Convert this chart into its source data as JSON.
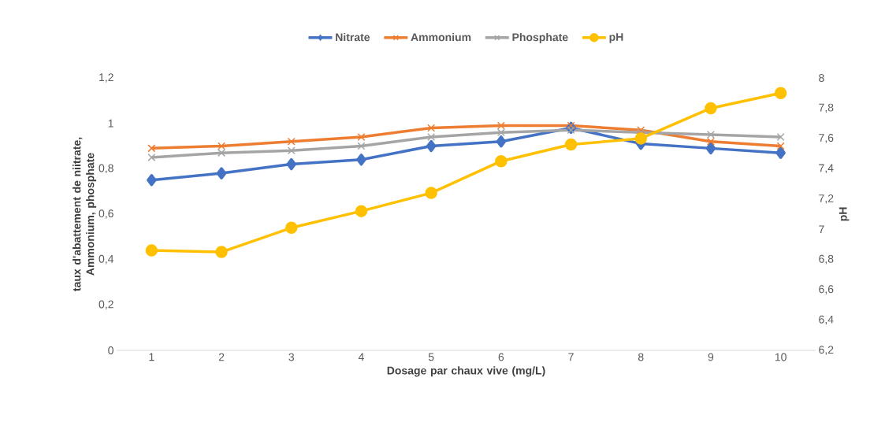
{
  "chart_data": {
    "type": "line",
    "categories": [
      "1",
      "2",
      "3",
      "4",
      "5",
      "6",
      "7",
      "8",
      "9",
      "10"
    ],
    "series": [
      {
        "name": "Nitrate",
        "color": "#4472c4",
        "marker": "diamond",
        "values": [
          0.75,
          0.78,
          0.82,
          0.84,
          0.9,
          0.92,
          0.98,
          0.91,
          0.89,
          0.87
        ]
      },
      {
        "name": "Ammonium",
        "color": "#ed7d31",
        "marker": "cross",
        "values": [
          0.89,
          0.9,
          0.92,
          0.94,
          0.98,
          0.99,
          0.99,
          0.97,
          0.92,
          0.9
        ]
      },
      {
        "name": "Phosphate",
        "color": "#a5a5a5",
        "marker": "cross",
        "values": [
          0.85,
          0.87,
          0.88,
          0.9,
          0.94,
          0.96,
          0.97,
          0.96,
          0.95,
          0.94
        ]
      },
      {
        "name": "pH",
        "color": "#ffc000",
        "marker": "circle",
        "axis": "y2",
        "values": [
          6.86,
          6.85,
          7.01,
          7.12,
          7.24,
          7.45,
          7.56,
          7.6,
          7.8,
          7.9
        ]
      }
    ],
    "xlabel": "Dosage par chaux vive (mg/L)",
    "ylabel": "taux d'abattement de niitrate, Ammonium, phosphate",
    "y2label": "pH",
    "ylim": [
      0,
      1.2
    ],
    "yticks": [
      0,
      {
        "value": 0.2,
        "label": "0,2"
      },
      {
        "value": 0.4,
        "label": "0,4"
      },
      {
        "value": 0.6,
        "label": "0,6"
      },
      {
        "value": 0.8,
        "label": "0,8"
      },
      1,
      {
        "value": 1.2,
        "label": "1,2"
      }
    ],
    "y2lim": [
      6.2,
      8
    ],
    "y2ticks": [
      {
        "value": 6.2,
        "label": "6,2"
      },
      {
        "value": 6.4,
        "label": "6,4"
      },
      {
        "value": 6.6,
        "label": "6,6"
      },
      {
        "value": 6.8,
        "label": "6,8"
      },
      7,
      {
        "value": 7.2,
        "label": "7,2"
      },
      {
        "value": 7.4,
        "label": "7,4"
      },
      {
        "value": 7.6,
        "label": "7,6"
      },
      {
        "value": 7.8,
        "label": "7,8"
      },
      8
    ],
    "legend": "top",
    "grid": false,
    "line_style": "solid"
  }
}
